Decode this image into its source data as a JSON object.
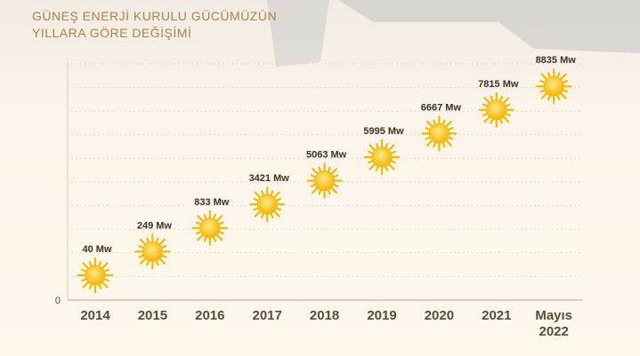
{
  "chart_data": {
    "type": "sun-steps",
    "title": [
      "GÜNEŞ ENERJİ KURULU GÜCÜMÜZÜN",
      "YILLARA GÖRE DEĞİŞİMİ"
    ],
    "categories": [
      "2014",
      "2015",
      "2016",
      "2017",
      "2018",
      "2019",
      "2020",
      "2021",
      "Mayıs 2022"
    ],
    "values": [
      40,
      249,
      833,
      3421,
      5063,
      5995,
      6667,
      7815,
      8835
    ],
    "value_labels": [
      "40 Mw",
      "249 Mw",
      "833 Mw",
      "3421 Mw",
      "5063 Mw",
      "5995 Mw",
      "6667 Mw",
      "7815 Mw",
      "8835 Mw"
    ],
    "yticks": [
      0
    ],
    "color": "#f5b800"
  }
}
